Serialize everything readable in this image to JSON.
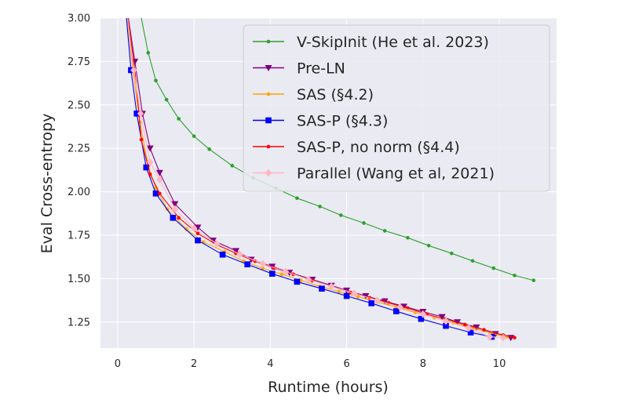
{
  "chart_data": {
    "type": "line",
    "xlabel": "Runtime (hours)",
    "ylabel": "Eval Cross-entropy",
    "xlim": [
      -0.45,
      11.5
    ],
    "ylim": [
      1.1,
      3.0
    ],
    "x_ticks": [
      0,
      2,
      4,
      6,
      8,
      10
    ],
    "y_ticks": [
      1.25,
      1.5,
      1.75,
      2.0,
      2.25,
      2.5,
      2.75,
      3.0
    ],
    "x_tick_labels": [
      "0",
      "2",
      "4",
      "6",
      "8",
      "10"
    ],
    "y_tick_labels": [
      "1.25",
      "1.50",
      "1.75",
      "2.00",
      "2.25",
      "2.50",
      "2.75",
      "3.00"
    ],
    "grid": true,
    "legend_position": "top-right",
    "background": "#eaeaf2",
    "series": [
      {
        "name": "V-SkipInit (He et al. 2023)",
        "color": "#2ca02c",
        "marker": "dot",
        "x": [
          0.62,
          0.8,
          1.0,
          1.28,
          1.6,
          2.0,
          2.4,
          3.0,
          3.55,
          4.15,
          4.7,
          5.3,
          5.85,
          6.45,
          7.0,
          7.6,
          8.15,
          8.75,
          9.3,
          9.85,
          10.4,
          10.9
        ],
        "y": [
          3.0,
          2.8,
          2.64,
          2.53,
          2.42,
          2.32,
          2.245,
          2.15,
          2.08,
          2.02,
          1.963,
          1.915,
          1.865,
          1.82,
          1.775,
          1.735,
          1.69,
          1.645,
          1.602,
          1.56,
          1.518,
          1.49
        ]
      },
      {
        "name": "Pre-LN",
        "color": "#800080",
        "marker": "triangle-down",
        "x": [
          0.28,
          0.45,
          0.65,
          0.85,
          1.1,
          1.5,
          2.1,
          2.5,
          3.1,
          3.5,
          4.05,
          4.5,
          5.1,
          5.6,
          6.0,
          6.5,
          7.0,
          7.5,
          8.0,
          8.5,
          8.9,
          9.4,
          9.9,
          10.3
        ],
        "y": [
          3.0,
          2.75,
          2.45,
          2.25,
          2.11,
          1.93,
          1.795,
          1.72,
          1.66,
          1.61,
          1.57,
          1.535,
          1.495,
          1.46,
          1.432,
          1.4,
          1.37,
          1.34,
          1.31,
          1.28,
          1.25,
          1.22,
          1.182,
          1.16
        ]
      },
      {
        "name": "SAS (§4.2)",
        "color": "#ffa500",
        "marker": "dot",
        "x": [
          0.25,
          0.4,
          0.58,
          0.8,
          1.0,
          1.3,
          1.8,
          2.25,
          2.8,
          3.3,
          3.8,
          4.3,
          4.8,
          5.3,
          5.8,
          6.3,
          6.8,
          7.3,
          7.8,
          8.3,
          8.8,
          9.3,
          9.8,
          10.2
        ],
        "y": [
          3.0,
          2.7,
          2.4,
          2.15,
          2.02,
          1.9,
          1.785,
          1.71,
          1.655,
          1.6,
          1.56,
          1.525,
          1.49,
          1.455,
          1.425,
          1.395,
          1.365,
          1.335,
          1.305,
          1.275,
          1.245,
          1.215,
          1.185,
          1.165
        ]
      },
      {
        "name": "SAS-P (§4.3)",
        "color": "#0000ff",
        "marker": "square",
        "x": [
          0.23,
          0.35,
          0.5,
          0.75,
          1.0,
          1.45,
          2.1,
          2.75,
          3.4,
          4.05,
          4.7,
          5.35,
          6.0,
          6.65,
          7.3,
          7.95,
          8.6,
          9.25,
          9.8
        ],
        "y": [
          3.0,
          2.7,
          2.45,
          2.14,
          1.99,
          1.85,
          1.72,
          1.638,
          1.582,
          1.528,
          1.482,
          1.442,
          1.4,
          1.358,
          1.312,
          1.268,
          1.228,
          1.19,
          1.165
        ]
      },
      {
        "name": "SAS-P, no norm (§4.4)",
        "color": "#ff0000",
        "marker": "dot",
        "x": [
          0.27,
          0.45,
          0.62,
          0.85,
          1.1,
          1.6,
          2.1,
          2.6,
          3.1,
          3.6,
          4.1,
          4.6,
          5.1,
          5.6,
          6.1,
          6.6,
          7.1,
          7.6,
          8.1,
          8.6,
          9.1,
          9.6,
          10.1,
          10.4
        ],
        "y": [
          3.0,
          2.7,
          2.3,
          2.1,
          1.99,
          1.85,
          1.76,
          1.695,
          1.645,
          1.6,
          1.56,
          1.525,
          1.49,
          1.455,
          1.42,
          1.39,
          1.36,
          1.33,
          1.295,
          1.265,
          1.235,
          1.205,
          1.175,
          1.16
        ]
      },
      {
        "name": "Parallel (Wang et al, 2021)",
        "color": "#ffb6c1",
        "marker": "diamond",
        "x": [
          0.26,
          0.42,
          0.6,
          0.85,
          1.1,
          1.5,
          2.0,
          2.6,
          3.2,
          3.8,
          4.4,
          5.0,
          5.6,
          6.2,
          6.8,
          7.4,
          8.0,
          8.6,
          9.2,
          9.75,
          10.1
        ],
        "y": [
          3.0,
          2.7,
          2.45,
          2.17,
          2.07,
          1.9,
          1.79,
          1.7,
          1.64,
          1.585,
          1.54,
          1.495,
          1.455,
          1.415,
          1.375,
          1.335,
          1.295,
          1.255,
          1.215,
          1.165,
          1.16
        ]
      }
    ]
  }
}
